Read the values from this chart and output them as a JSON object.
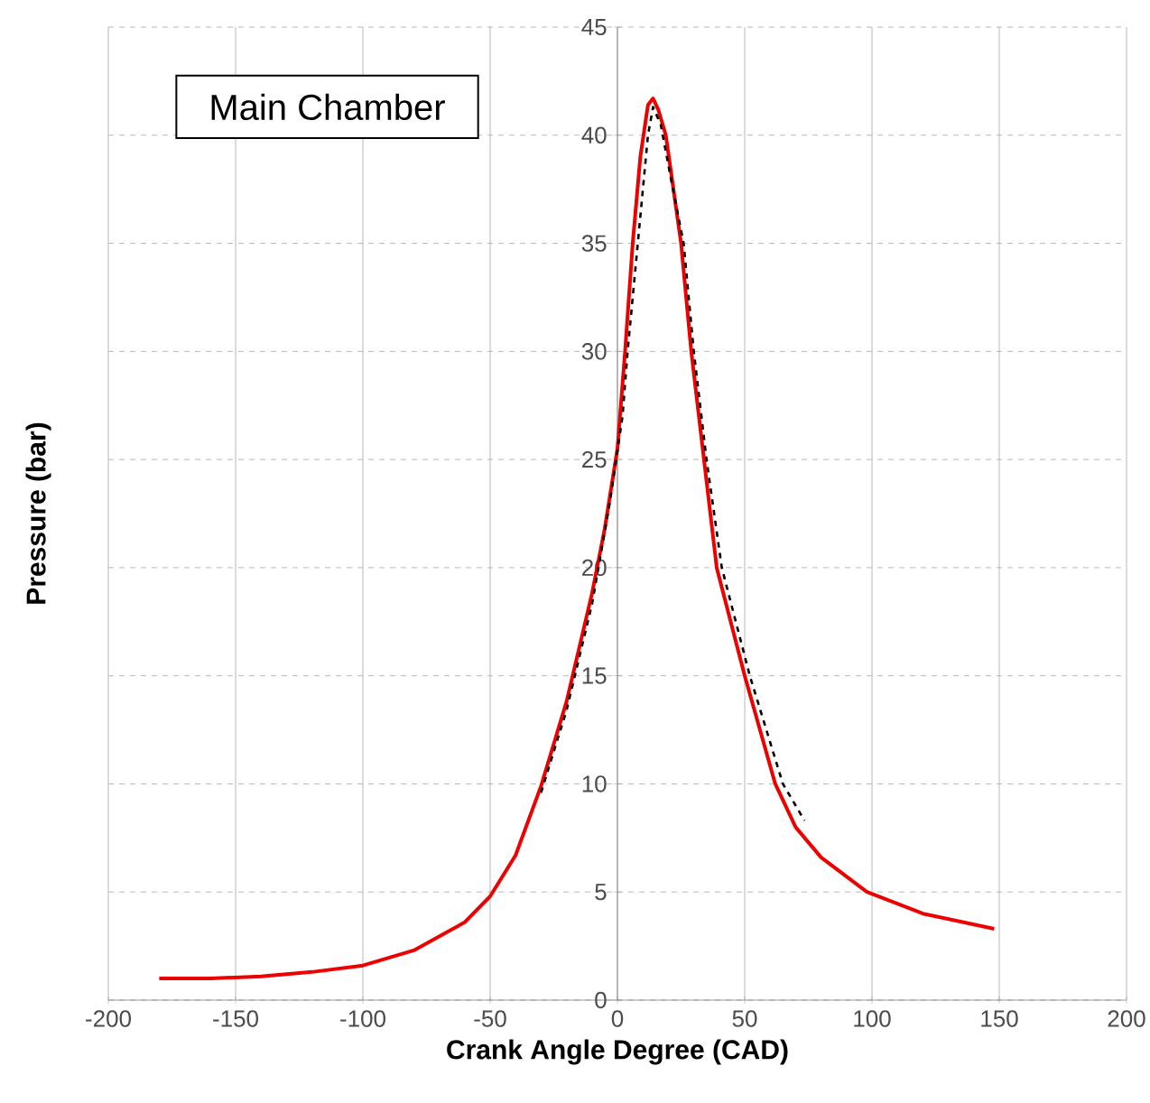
{
  "chart_data": {
    "type": "line",
    "xlabel": "Crank Angle Degree (CAD)",
    "ylabel": "Pressure (bar)",
    "annotations": [
      "Main Chamber"
    ],
    "xlim": [
      -200,
      200
    ],
    "xticks": [
      -200,
      -150,
      -100,
      -50,
      0,
      50,
      100,
      150,
      200
    ],
    "ylim": [
      0,
      45
    ],
    "yticks": [
      0,
      5,
      10,
      15,
      20,
      25,
      30,
      35,
      40,
      45
    ],
    "grid": true,
    "marker": "none",
    "series": [
      {
        "color": "#ee0000",
        "line_style": "solid",
        "x": [
          -180,
          -160,
          -140,
          -120,
          -100,
          -80,
          -60,
          -50,
          -40,
          -30,
          -20,
          -10,
          -5,
          0,
          3,
          6,
          9,
          12,
          14,
          16,
          19,
          25,
          29,
          34,
          39,
          50,
          62,
          70,
          80,
          98,
          120,
          148
        ],
        "values": [
          1.0,
          1.0,
          1.1,
          1.3,
          1.6,
          2.3,
          3.6,
          4.8,
          6.7,
          9.9,
          13.8,
          18.8,
          21.8,
          25.5,
          30,
          35,
          39,
          41.4,
          41.7,
          41.2,
          40,
          35,
          30,
          25,
          20,
          15,
          10,
          8,
          6.6,
          5,
          4,
          3.3
        ]
      },
      {
        "color": "#000000",
        "line_style": "dashed",
        "x": [
          -30,
          -20,
          -10,
          -3,
          2,
          4,
          8,
          12,
          14,
          17,
          21,
          26,
          30,
          35,
          41,
          52,
          65,
          73.5
        ],
        "values": [
          9.6,
          13.4,
          18.3,
          23,
          27,
          30,
          35,
          40,
          41.3,
          40.5,
          38,
          35,
          30,
          25,
          20,
          15,
          10,
          8.3
        ]
      }
    ]
  }
}
